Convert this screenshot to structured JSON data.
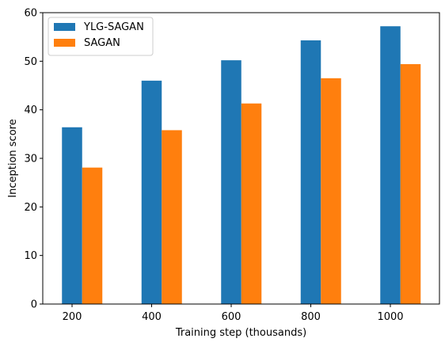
{
  "chart_data": {
    "type": "bar",
    "categories": [
      "200",
      "400",
      "600",
      "800",
      "1000"
    ],
    "series": [
      {
        "name": "YLG-SAGAN",
        "values": [
          36.4,
          46.0,
          50.2,
          54.3,
          57.2
        ],
        "color": "#1f77b4"
      },
      {
        "name": "SAGAN",
        "values": [
          28.1,
          35.8,
          41.3,
          46.5,
          49.4
        ],
        "color": "#ff7f0e"
      }
    ],
    "xlabel": "Training step (thousands)",
    "ylabel": "Inception score",
    "ylim": [
      0,
      60
    ],
    "yticks": [
      "0",
      "10",
      "20",
      "30",
      "40",
      "50",
      "60"
    ],
    "grid": false,
    "legend_position": "top-left"
  }
}
